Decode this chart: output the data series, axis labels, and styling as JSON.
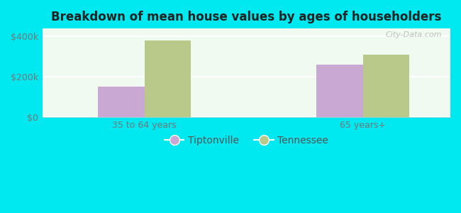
{
  "title": "Breakdown of mean house values by ages of householders",
  "categories": [
    "35 to 64 years",
    "65 years+"
  ],
  "tiptonville_values": [
    150000,
    260000
  ],
  "tennessee_values": [
    380000,
    310000
  ],
  "tiptonville_color": "#c9a8d4",
  "tennessee_color": "#b8c98a",
  "background_color": "#00e8f0",
  "plot_bg_color": "#e8f8e8",
  "ylim": [
    0,
    440000
  ],
  "yticks": [
    0,
    200000,
    400000
  ],
  "ytick_labels": [
    "$0",
    "$200k",
    "$400k"
  ],
  "legend_tiptonville": "Tiptonville",
  "legend_tennessee": "Tennessee",
  "bar_width": 0.32,
  "watermark": "City-Data.com"
}
